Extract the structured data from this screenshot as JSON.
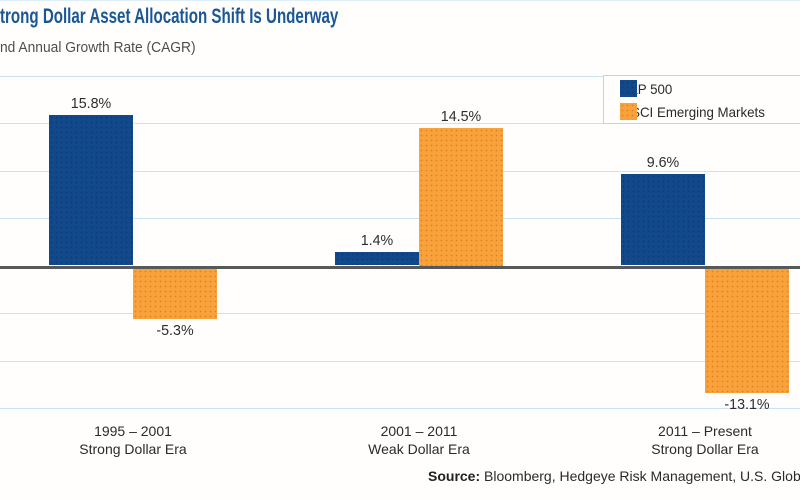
{
  "header": {
    "title": "trong Dollar Asset Allocation Shift Is Underway",
    "subtitle": "nd Annual Growth Rate (CAGR)"
  },
  "chart_data": {
    "type": "bar",
    "title": "trong Dollar Asset Allocation Shift Is Underway",
    "subtitle": "nd Annual Growth Rate (CAGR)",
    "categories": [
      {
        "line1": "1995 – 2001",
        "line2": "Strong Dollar Era"
      },
      {
        "line1": "2001 – 2011",
        "line2": "Weak Dollar Era"
      },
      {
        "line1": "2011 – Present",
        "line2": "Strong Dollar Era"
      }
    ],
    "series": [
      {
        "name": "S&P 500",
        "color": "#11498b",
        "values": [
          15.8,
          1.4,
          9.6
        ],
        "labels": [
          "15.8%",
          "1.4%",
          "9.6%"
        ]
      },
      {
        "name": "MSCI Emerging Markets",
        "color": "#f9a23c",
        "values": [
          -5.3,
          14.5,
          -13.1
        ],
        "labels": [
          "-5.3%",
          "14.5%",
          "-13.1%"
        ]
      }
    ],
    "xlabel": "",
    "ylabel": "",
    "ylim": [
      -17,
      21
    ],
    "gridline_step_pct": 5,
    "grid": true,
    "legend_position": "top-right",
    "colors": {
      "gridline": "#c8e4f2",
      "zero_line": "#57585a"
    }
  },
  "source": {
    "label": "Source:",
    "text": " Bloomberg, Hedgeye Risk Management, U.S. Global In"
  }
}
